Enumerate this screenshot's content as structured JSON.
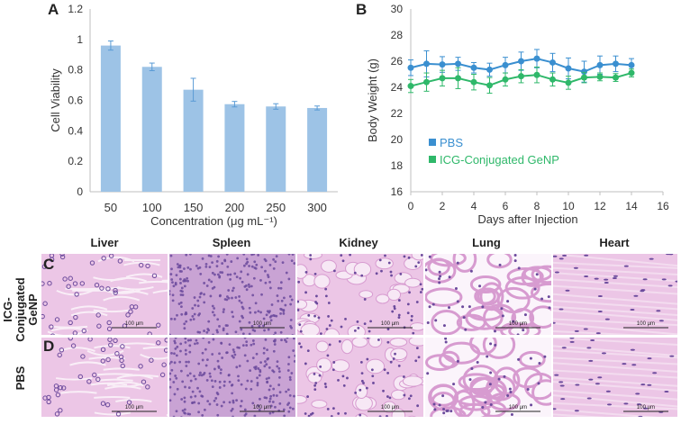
{
  "chart_data": [
    {
      "type": "bar",
      "panel": "A",
      "categories": [
        "50",
        "100",
        "150",
        "200",
        "250",
        "300"
      ],
      "values": [
        0.96,
        0.82,
        0.67,
        0.575,
        0.56,
        0.55
      ],
      "errors": [
        0.03,
        0.025,
        0.075,
        0.018,
        0.018,
        0.013
      ],
      "xlabel": "Concentration (μg mL⁻¹)",
      "ylabel": "Cell Viability",
      "ylim": [
        0,
        1.2
      ],
      "yticks": [
        "0",
        "0.2",
        "0.4",
        "0.6",
        "0.8",
        "1",
        "1.2"
      ],
      "color": "#9dc3e6"
    },
    {
      "type": "line",
      "panel": "B",
      "x": [
        0,
        1,
        2,
        3,
        4,
        5,
        6,
        7,
        8,
        9,
        10,
        11,
        12,
        13,
        14
      ],
      "series": [
        {
          "name": "PBS",
          "color": "#3a8fd0",
          "values": [
            25.5,
            25.8,
            25.75,
            25.8,
            25.5,
            25.35,
            25.7,
            26.0,
            26.2,
            25.9,
            25.45,
            25.2,
            25.7,
            25.8,
            25.7
          ],
          "errors": [
            0.6,
            1.0,
            0.6,
            0.5,
            0.4,
            0.5,
            0.6,
            0.7,
            0.7,
            0.7,
            0.8,
            0.8,
            0.7,
            0.6,
            0.5
          ]
        },
        {
          "name": "ICG-Conjugated GeNP",
          "color": "#2fb86a",
          "values": [
            24.1,
            24.4,
            24.7,
            24.7,
            24.4,
            24.15,
            24.6,
            24.85,
            24.95,
            24.6,
            24.35,
            24.75,
            24.8,
            24.75,
            25.1
          ],
          "errors": [
            0.5,
            0.7,
            0.6,
            0.8,
            0.6,
            0.6,
            0.5,
            0.5,
            0.6,
            0.5,
            0.5,
            0.4,
            0.3,
            0.3,
            0.3
          ]
        }
      ],
      "xlabel": "Days after Injection",
      "ylabel": "Body Weight (g)",
      "xlim": [
        0,
        16
      ],
      "ylim": [
        16,
        30
      ],
      "xticks": [
        "0",
        "2",
        "4",
        "6",
        "8",
        "10",
        "12",
        "14",
        "16"
      ],
      "yticks": [
        "16",
        "18",
        "20",
        "22",
        "24",
        "26",
        "28",
        "30"
      ]
    }
  ],
  "histology": {
    "columns": [
      "Liver",
      "Spleen",
      "Kidney",
      "Lung",
      "Heart"
    ],
    "rows": [
      {
        "letter": "C",
        "label": [
          "ICG-",
          "Conjugated",
          "GeNP"
        ]
      },
      {
        "letter": "D",
        "label": [
          "PBS"
        ]
      }
    ],
    "scale_text": "100 μm"
  },
  "panel_letters": {
    "a": "A",
    "b": "B"
  },
  "colors": {
    "tissue_bg": "#ecc6e6",
    "tissue_mid": "#d79bd0",
    "nucleus": "#6b4a9c",
    "lumen": "#fbf4fb"
  }
}
